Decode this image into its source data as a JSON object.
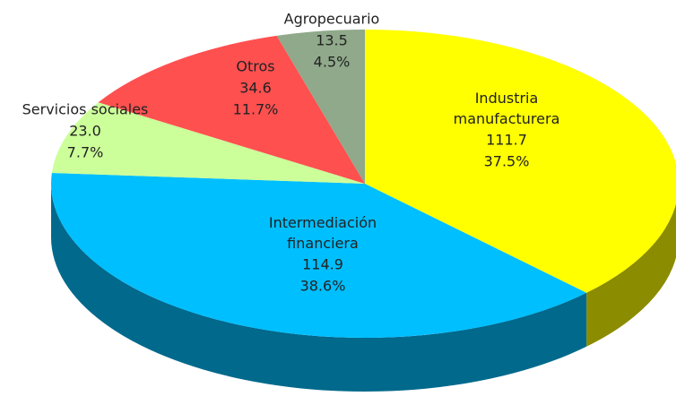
{
  "chart_data": {
    "type": "pie3d",
    "categories": [
      "Industria manufacturera",
      "Intermediación financiera",
      "Servicios sociales",
      "Otros",
      "Agropecuario"
    ],
    "values": [
      111.7,
      114.9,
      23.0,
      34.6,
      13.5
    ],
    "value_labels": [
      "111.7",
      "114.9",
      "23.0",
      "34.6",
      "13.5"
    ],
    "percent_labels": [
      "37.5%",
      "38.6%",
      "7.7%",
      "11.7%",
      "4.5%"
    ],
    "colors": [
      "#ffff00",
      "#00bfff",
      "#ccff99",
      "#ff5050",
      "#8fa98a"
    ]
  }
}
